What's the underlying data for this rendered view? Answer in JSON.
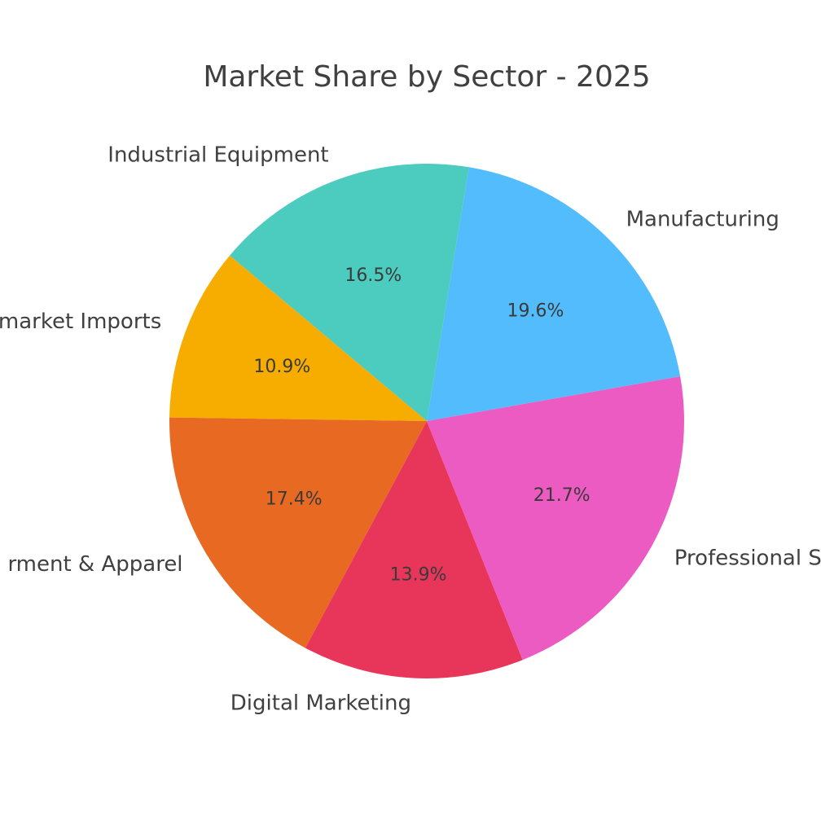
{
  "chart_data": {
    "type": "pie",
    "title": "Market Share by Sector - 2025",
    "categories": [
      "Manufacturing",
      "Industrial Equipment",
      "market Imports",
      "rment & Apparel",
      "Digital Marketing",
      "Professional S"
    ],
    "values": [
      19.6,
      16.5,
      10.9,
      17.4,
      13.9,
      21.7
    ],
    "value_labels": [
      "19.6%",
      "16.5%",
      "10.9%",
      "17.4%",
      "13.9%",
      "21.7%"
    ],
    "colors": [
      "#52bcfc",
      "#4ccbbf",
      "#f7ad00",
      "#e86a22",
      "#e8365a",
      "#ec5bc2"
    ]
  }
}
